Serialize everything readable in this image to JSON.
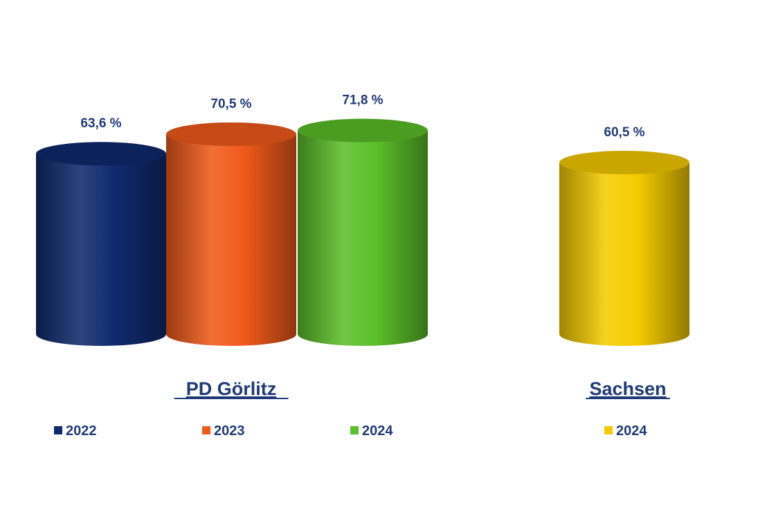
{
  "chart_data": {
    "type": "bar",
    "groups": [
      {
        "label": "PD Görlitz",
        "bars": [
          {
            "series": "2022",
            "value": 63.6,
            "label": "63,6 %",
            "color": "#0f2a6e"
          },
          {
            "series": "2023",
            "value": 70.5,
            "label": "70,5 %",
            "color": "#f05a1a"
          },
          {
            "series": "2024",
            "value": 71.8,
            "label": "71,8 %",
            "color": "#5cbf2a"
          }
        ]
      },
      {
        "label": "Sachsen",
        "bars": [
          {
            "series": "2024",
            "value": 60.5,
            "label": "60,5 %",
            "color": "#f5cc00"
          }
        ]
      }
    ],
    "legend": [
      {
        "name": "2022",
        "color": "#0f2a6e"
      },
      {
        "name": "2023",
        "color": "#f05a1a"
      },
      {
        "name": "2024",
        "color": "#5cbf2a"
      },
      {
        "name": "2024",
        "color": "#f5cc00"
      }
    ],
    "ylim": [
      0,
      100
    ],
    "grid": false,
    "legend_placement": "bottom"
  }
}
